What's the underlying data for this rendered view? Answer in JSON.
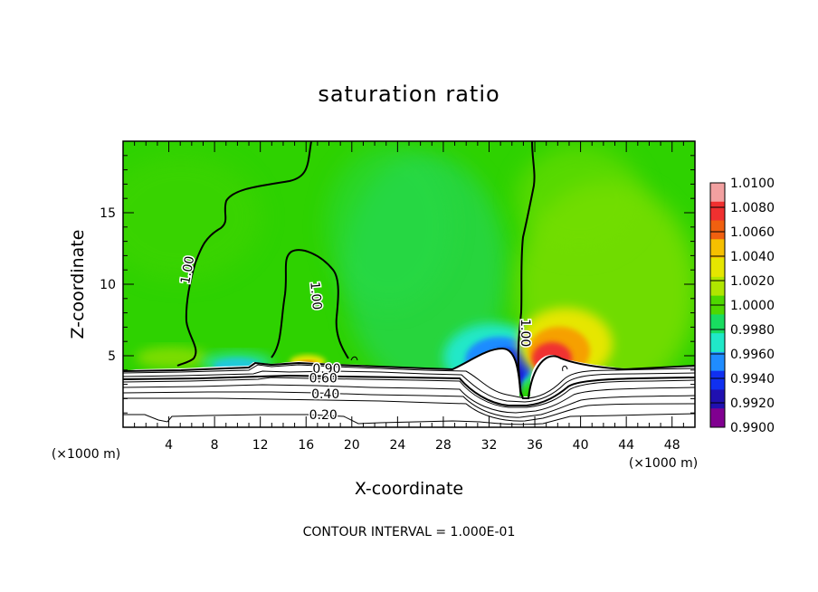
{
  "chart_data": {
    "type": "heatmap",
    "title": "saturation ratio",
    "xlabel": "X-coordinate",
    "ylabel": "Z-coordinate",
    "x_unit_left": "(×1000 m)",
    "x_unit_right": "(×1000 m)",
    "xlim": [
      0,
      50
    ],
    "ylim": [
      0,
      20
    ],
    "x_ticks": [
      4,
      8,
      12,
      16,
      20,
      24,
      28,
      32,
      36,
      40,
      44,
      48
    ],
    "y_ticks": [
      5,
      10,
      15
    ],
    "note": "CONTOUR INTERVAL = 1.000E-01",
    "colorbar": {
      "labels": [
        "1.0100",
        "1.0080",
        "1.0060",
        "1.0040",
        "1.0020",
        "1.0000",
        "0.9980",
        "0.9960",
        "0.9940",
        "0.9920",
        "0.9900"
      ],
      "colors": [
        "#f2a0a0",
        "#f03030",
        "#f06010",
        "#f6c000",
        "#e6e600",
        "#b0e600",
        "#4ed800",
        "#18dc60",
        "#20e8c8",
        "#1f8cff",
        "#1030f0",
        "#2010b0",
        "#800090"
      ],
      "min": 0.99,
      "max": 1.01
    },
    "contour_labels": [
      {
        "text": "1.00",
        "x": 5.6,
        "y": 11.0,
        "rotate": -80
      },
      {
        "text": "1.00",
        "x": 16.9,
        "y": 9.2,
        "rotate": 85
      },
      {
        "text": "1.00",
        "x": 35.2,
        "y": 6.6,
        "rotate": 90
      },
      {
        "text": "0.90",
        "x": 17.8,
        "y": 4.1,
        "rotate": 0
      },
      {
        "text": "0.60",
        "x": 17.5,
        "y": 3.45,
        "rotate": 0
      },
      {
        "text": "0.40",
        "x": 17.7,
        "y": 2.35,
        "rotate": 0
      },
      {
        "text": "0.20",
        "x": 17.5,
        "y": 0.9,
        "rotate": 0
      }
    ]
  }
}
